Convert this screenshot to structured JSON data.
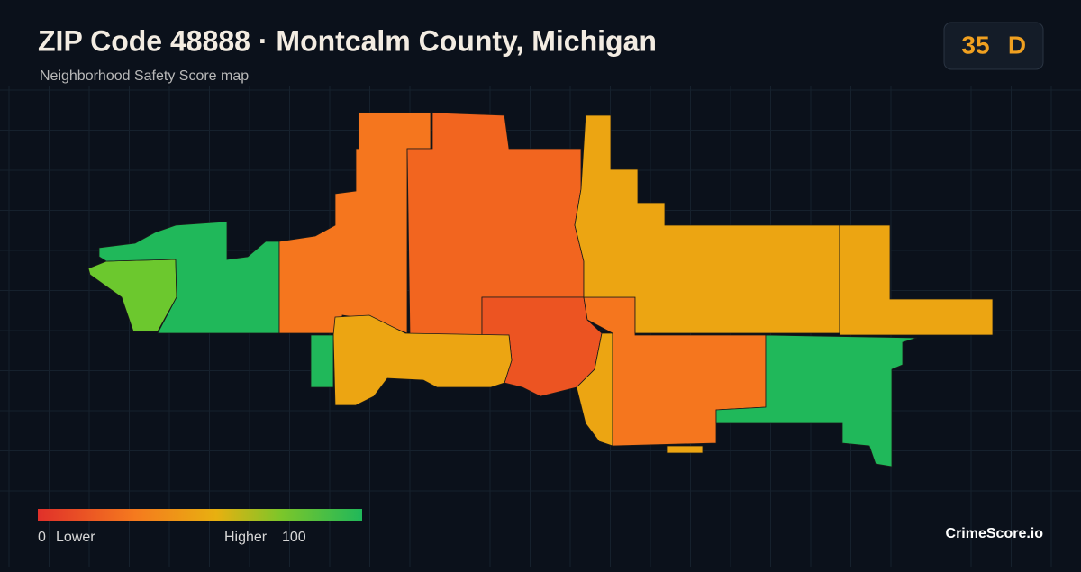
{
  "header": {
    "title": "ZIP Code 48888 · Montcalm County, Michigan",
    "subtitle": "Neighborhood Safety Score map"
  },
  "score": {
    "value": "35",
    "grade": "D"
  },
  "legend": {
    "min": "0",
    "min_label": "Lower",
    "max_label": "Higher",
    "max": "100"
  },
  "brand": "CrimeScore.io"
}
